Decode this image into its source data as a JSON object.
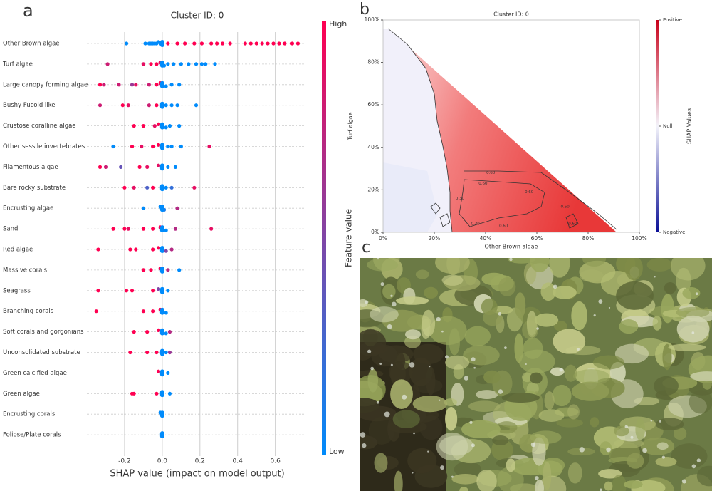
{
  "chart_data": [
    {
      "type": "beeswarm",
      "panel": "a",
      "title": "Cluster ID: 0",
      "xlabel": "SHAP value (impact on model output)",
      "categories": [
        "Other Brown algae",
        "Turf algae",
        "Large canopy forming algae",
        "Bushy Fucoid like",
        "Crustose coralline algae",
        "Other sessile invertebrates",
        "Filamentous algae",
        "Bare rocky substrate",
        "Encrusting algae",
        "Sand",
        "Red algae",
        "Massive corals",
        "Seagrass",
        "Branching corals",
        "Soft corals and gorgonians",
        "Unconsolidated substrate",
        "Green calcified algae",
        "Green algae",
        "Encrusting corals",
        "Foliose/Plate corals"
      ],
      "shap": [
        [
          -0.19,
          -0.09,
          -0.07,
          -0.06,
          -0.05,
          -0.04,
          -0.03,
          -0.02,
          -0.01,
          0.0,
          0.03,
          0.08,
          0.12,
          0.17,
          0.21,
          0.26,
          0.29,
          0.32,
          0.36,
          0.44,
          0.47,
          0.5,
          0.53,
          0.56,
          0.59,
          0.62,
          0.65,
          0.69,
          0.72
        ],
        [
          -0.29,
          -0.1,
          -0.06,
          -0.03,
          -0.01,
          0.0,
          0.01,
          0.03,
          0.06,
          0.1,
          0.14,
          0.18,
          0.21,
          0.23,
          0.28
        ],
        [
          -0.33,
          -0.31,
          -0.23,
          -0.16,
          -0.14,
          -0.07,
          -0.03,
          -0.01,
          0.0,
          0.02,
          0.05,
          0.09
        ],
        [
          -0.33,
          -0.21,
          -0.18,
          -0.07,
          -0.03,
          0.0,
          0.02,
          0.05,
          0.08,
          0.18
        ],
        [
          -0.15,
          -0.1,
          -0.04,
          -0.02,
          0.0,
          0.02,
          0.04,
          0.09
        ],
        [
          -0.26,
          -0.16,
          -0.11,
          -0.05,
          -0.02,
          0.0,
          0.03,
          0.05,
          0.1,
          0.25
        ],
        [
          -0.33,
          -0.3,
          -0.22,
          -0.12,
          -0.08,
          -0.02,
          0.0,
          0.03,
          0.07
        ],
        [
          -0.2,
          -0.15,
          -0.08,
          -0.05,
          0.0,
          0.02,
          0.05,
          0.17
        ],
        [
          -0.1,
          -0.01,
          0.0,
          0.01,
          0.08
        ],
        [
          -0.26,
          -0.2,
          -0.18,
          -0.1,
          -0.05,
          -0.01,
          0.0,
          0.02,
          0.07,
          0.26
        ],
        [
          -0.34,
          -0.17,
          -0.14,
          -0.05,
          -0.02,
          0.0,
          0.02,
          0.05
        ],
        [
          -0.1,
          -0.06,
          -0.01,
          0.0,
          0.03,
          0.09
        ],
        [
          -0.34,
          -0.19,
          -0.16,
          -0.05,
          -0.02,
          0.0,
          0.03
        ],
        [
          -0.35,
          -0.1,
          -0.05,
          -0.01,
          0.0,
          0.02
        ],
        [
          -0.15,
          -0.08,
          -0.02,
          0.0,
          0.02,
          0.04
        ],
        [
          -0.17,
          -0.08,
          -0.03,
          0.0,
          0.02,
          0.04
        ],
        [
          -0.02,
          0.0,
          0.03
        ],
        [
          -0.16,
          -0.15,
          -0.03,
          0.0,
          0.04
        ],
        [
          -0.01,
          0.0
        ],
        [
          0.0
        ]
      ],
      "feature_value": [
        [
          0,
          0,
          0,
          0,
          0,
          0,
          0,
          0,
          0,
          0,
          1,
          1,
          1,
          1,
          1,
          1,
          1,
          1,
          1,
          1,
          1,
          1,
          1,
          1,
          1,
          1,
          1,
          1,
          1
        ],
        [
          0.8,
          0.9,
          1,
          1,
          0.9,
          0.3,
          0,
          0,
          0,
          0,
          0,
          0,
          0,
          0,
          0
        ],
        [
          1,
          0.8,
          0.8,
          0.6,
          0.9,
          0.8,
          1,
          1,
          0,
          0,
          0,
          0
        ],
        [
          0.8,
          1,
          0.9,
          0.8,
          1,
          0,
          0,
          0,
          0,
          0
        ],
        [
          1,
          1,
          0.9,
          1,
          0,
          0,
          0,
          0
        ],
        [
          0,
          1,
          0.9,
          1,
          1,
          0,
          0,
          0,
          0,
          0.9
        ],
        [
          1,
          0.8,
          0.4,
          1,
          0.9,
          0.9,
          0,
          0,
          0
        ],
        [
          1,
          0.9,
          0.3,
          1,
          0,
          0,
          0.2,
          0.9
        ],
        [
          0,
          0,
          0,
          0.1,
          0.7
        ],
        [
          1,
          1,
          0.9,
          1,
          1,
          1,
          0,
          0,
          0.7,
          0.9
        ],
        [
          1,
          1,
          1,
          1,
          1,
          0,
          0.5,
          0.7
        ],
        [
          1,
          1,
          1,
          0,
          0.7,
          0
        ],
        [
          1,
          1,
          1,
          1,
          0.5,
          0,
          0
        ],
        [
          1,
          1,
          1,
          1,
          0,
          0
        ],
        [
          1,
          1,
          1,
          0,
          0,
          0.7
        ],
        [
          1,
          1,
          1,
          0,
          0,
          0.6
        ],
        [
          1,
          0,
          0
        ],
        [
          1,
          1,
          1,
          0,
          0
        ],
        [
          0,
          0
        ],
        [
          0
        ]
      ],
      "xlim": [
        -0.4,
        0.76
      ],
      "xticks": [
        -0.2,
        {
          "value": 0,
          "label": "0.0"
        },
        0.2,
        0.4,
        0.6
      ],
      "low_color": "#008bfb",
      "high_color": "#ff0051",
      "colorbar_high": "High",
      "colorbar_low": "Low",
      "colorbar_label": "Feature value"
    },
    {
      "type": "contour",
      "panel": "b",
      "title": "Cluster ID: 0",
      "xlabel": "Other Brown algae",
      "ylabel": "Turf algae",
      "xlim": [
        0,
        1
      ],
      "ylim": [
        0,
        1
      ],
      "xticks": [
        {
          "value": 0,
          "label": "0%"
        },
        {
          "value": 0.2,
          "label": "20%"
        },
        {
          "value": 0.4,
          "label": "40%"
        },
        {
          "value": 0.6,
          "label": "60%"
        },
        {
          "value": 0.8,
          "label": "80%"
        },
        {
          "value": 1,
          "label": "100%"
        }
      ],
      "yticks": [
        {
          "value": 0,
          "label": "0%"
        },
        {
          "value": 0.2,
          "label": "20%"
        },
        {
          "value": 0.4,
          "label": "40%"
        },
        {
          "value": 0.6,
          "label": "60%"
        },
        {
          "value": 0.8,
          "label": "80%"
        },
        {
          "value": 1,
          "label": "100%"
        }
      ],
      "contour_labels": [
        {
          "text": "0.60",
          "x": 0.42,
          "y": 0.28
        },
        {
          "text": "0.60",
          "x": 0.39,
          "y": 0.23
        },
        {
          "text": "0.60",
          "x": 0.57,
          "y": 0.19
        },
        {
          "text": "0.60",
          "x": 0.71,
          "y": 0.12
        },
        {
          "text": "0.30",
          "x": 0.3,
          "y": 0.16
        },
        {
          "text": "0.30",
          "x": 0.36,
          "y": 0.04
        },
        {
          "text": "0.60",
          "x": 0.47,
          "y": 0.03
        },
        {
          "text": "0.60",
          "x": 0.74,
          "y": 0.04
        }
      ],
      "colormap": [
        "#c8001a",
        "#f3f3fa",
        "#0a0f96"
      ],
      "colorbar_ticks": [
        "Positive",
        "Null",
        "Negative"
      ],
      "colorbar_label": "SHAP Values"
    },
    {
      "type": "image",
      "panel": "c"
    }
  ]
}
